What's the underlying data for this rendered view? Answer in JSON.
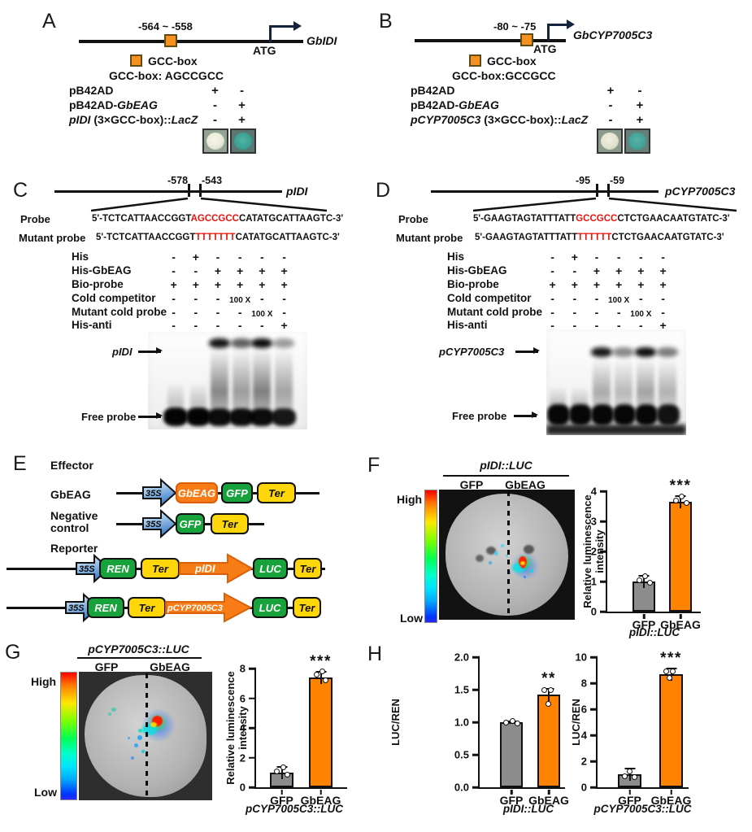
{
  "colors": {
    "accent_orange": "#F59120",
    "bar_gray": "#8C8C8C",
    "bar_orange": "#FF8200",
    "motif_red": "#E8150F",
    "box_green": "#17A23C",
    "box_yellow": "#FFD60A",
    "construct_orange": "#F97B16",
    "arrow_blue": "#3E7EC8",
    "colony_teal": "#3AA093"
  },
  "panelA": {
    "letter": "A",
    "region": "-564 ~ -558",
    "gene": "GbIDI",
    "atg": "ATG",
    "legend": "GCC-box",
    "motif_label": "GCC-box:",
    "motif_seq": "AGCCGCC",
    "row1": "pB42AD",
    "row2_pre": "pB42AD-",
    "row2_it": "GbEAG",
    "row3_it1": "pIDI",
    "row3_mid": " (3×GCC-box)::",
    "row3_it2": "LacZ",
    "vals1": [
      "+",
      "-"
    ],
    "vals2": [
      "-",
      "+"
    ],
    "vals3": [
      "-",
      "+"
    ]
  },
  "panelB": {
    "letter": "B",
    "region": "-80 ~ -75",
    "gene": "GbCYP7005C3",
    "atg": "ATG",
    "legend": "GCC-box",
    "motif_label": "GCC-box:",
    "motif_seq": "GCCGCC",
    "row1": "pB42AD",
    "row2_pre": "pB42AD-",
    "row2_it": "GbEAG",
    "row3_it1": "pCYP7005C3",
    "row3_mid": " (3×GCC-box)::",
    "row3_it2": "LacZ",
    "vals1": [
      "+",
      "-"
    ],
    "vals2": [
      "-",
      "+"
    ],
    "vals3": [
      "-",
      "+"
    ]
  },
  "panelC": {
    "letter": "C",
    "pos_left": "-578",
    "pos_right": "-543",
    "gene": "pIDI",
    "probe_label": "Probe",
    "mutant_label": "Mutant probe",
    "probe_p1": "5'-TCTCATTAACCGGT",
    "probe_red": "AGCCGCC",
    "probe_p2": "CATATGCATTAAGTC-3'",
    "mut_p1": "5'-TCTCATTAACCGGT",
    "mut_red": "TTTTTTT",
    "mut_p2": "CATATGCATTAAGTC-3'",
    "emsa_rows": [
      {
        "label": "His",
        "cells": [
          "-",
          "+",
          "-",
          "-",
          "-",
          "-"
        ]
      },
      {
        "label": "His-GbEAG",
        "cells": [
          "-",
          "-",
          "+",
          "+",
          "+",
          "+"
        ]
      },
      {
        "label": "Bio-probe",
        "cells": [
          "+",
          "+",
          "+",
          "+",
          "+",
          "+"
        ]
      },
      {
        "label": "Cold competitor",
        "cells": [
          "-",
          "-",
          "-",
          "100 X",
          "-",
          "-"
        ]
      },
      {
        "label": "Mutant cold probe",
        "cells": [
          "-",
          "-",
          "-",
          "-",
          "100 X",
          "-"
        ]
      },
      {
        "label": "His-anti",
        "cells": [
          "-",
          "-",
          "-",
          "-",
          "-",
          "+"
        ]
      }
    ],
    "band_label": "pIDI",
    "free_label": "Free probe"
  },
  "panelD": {
    "letter": "D",
    "pos_left": "-95",
    "pos_right": "-59",
    "gene": "pCYP7005C3",
    "probe_label": "Probe",
    "mutant_label": "Mutant probe",
    "probe_p1": "5'-GAAGTAGTATTTATT",
    "probe_red": "GCCGCC",
    "probe_p2": "CTCTGAACAATGTATC-3'",
    "mut_p1": "5'-GAAGTAGTATTTATT",
    "mut_red": "TTTTTT",
    "mut_p2": "CTCTGAACAATGTATC-3'",
    "emsa_rows": [
      {
        "label": "His",
        "cells": [
          "-",
          "+",
          "-",
          "-",
          "-",
          "-"
        ]
      },
      {
        "label": "His-GbEAG",
        "cells": [
          "-",
          "-",
          "+",
          "+",
          "+",
          "+"
        ]
      },
      {
        "label": "Bio-probe",
        "cells": [
          "+",
          "+",
          "+",
          "+",
          "+",
          "+"
        ]
      },
      {
        "label": "Cold competitor",
        "cells": [
          "-",
          "-",
          "-",
          "100 X",
          "-",
          "-"
        ]
      },
      {
        "label": "Mutant cold probe",
        "cells": [
          "-",
          "-",
          "-",
          "-",
          "100 X",
          "-"
        ]
      },
      {
        "label": "His-anti",
        "cells": [
          "-",
          "-",
          "-",
          "-",
          "-",
          "+"
        ]
      }
    ],
    "band_label": "pCYP7005C3",
    "free_label": "Free probe"
  },
  "panelE": {
    "letter": "E",
    "effector": "Effector",
    "reporter": "Reporter",
    "row1_label": "GbEAG",
    "row2_label": "Negative\ncontrol",
    "p35s": "35S",
    "gbeag": "GbEAG",
    "gfp": "GFP",
    "ter": "Ter",
    "ren": "REN",
    "luc": "LUC",
    "pidi": "pIDI",
    "pcyp": "pCYP7005C3"
  },
  "panelF": {
    "letter": "F",
    "header": "pIDI::LUC",
    "col1": "GFP",
    "col2": "GbEAG",
    "high": "High",
    "low": "Low"
  },
  "panelG": {
    "letter": "G",
    "header": "pCYP7005C3::LUC",
    "col1": "GFP",
    "col2": "GbEAG",
    "high": "High",
    "low": "Low"
  },
  "panelH": {
    "letter": "H"
  },
  "chart_data": [
    {
      "id": "F-luminescence",
      "type": "bar",
      "categories": [
        "GFP",
        "GbEAG"
      ],
      "values": [
        1.0,
        3.65
      ],
      "errors": [
        0.15,
        0.1
      ],
      "title": "",
      "xlabel": "",
      "ylabel": "Relative luminescence\nintensity",
      "caption": "pIDI::LUC",
      "ylim": [
        0,
        4
      ],
      "yticks": [
        "4",
        "3",
        "2",
        "1",
        "0"
      ],
      "significance": "***",
      "bar_colors": [
        "#8C8C8C",
        "#FF8200"
      ],
      "grid": false,
      "legend_position": "none"
    },
    {
      "id": "G-luminescence",
      "type": "bar",
      "categories": [
        "GFP",
        "GbEAG"
      ],
      "values": [
        1.0,
        7.4
      ],
      "errors": [
        0.35,
        0.3
      ],
      "title": "",
      "xlabel": "",
      "ylabel": "Relative luminescence\nintensity",
      "caption": "pCYP7005C3::LUC",
      "ylim": [
        0,
        8
      ],
      "yticks": [
        "8",
        "6",
        "4",
        "2",
        "0"
      ],
      "significance": "***",
      "bar_colors": [
        "#8C8C8C",
        "#FF8200"
      ],
      "grid": false,
      "legend_position": "none"
    },
    {
      "id": "H-lucren-pIDI",
      "type": "bar",
      "categories": [
        "GFP",
        "GbEAG"
      ],
      "values": [
        1.0,
        1.42
      ],
      "errors": [
        0.02,
        0.12
      ],
      "title": "",
      "xlabel": "",
      "ylabel": "LUC/REN",
      "caption": "pIDI::LUC",
      "ylim": [
        0,
        2
      ],
      "yticks": [
        "2.0",
        "1.5",
        "1.0",
        "0.5",
        "0.0"
      ],
      "significance": "**",
      "bar_colors": [
        "#8C8C8C",
        "#FF8200"
      ],
      "grid": false,
      "legend_position": "none"
    },
    {
      "id": "H-lucren-pCYP7005C3",
      "type": "bar",
      "categories": [
        "GFP",
        "GbEAG"
      ],
      "values": [
        1.0,
        8.7
      ],
      "errors": [
        0.25,
        0.2
      ],
      "title": "",
      "xlabel": "",
      "ylabel": "LUC/REN",
      "caption": "pCYP7005C3::LUC",
      "ylim": [
        0,
        10
      ],
      "yticks": [
        "10",
        "8",
        "6",
        "4",
        "2",
        "0"
      ],
      "significance": "***",
      "bar_colors": [
        "#8C8C8C",
        "#FF8200"
      ],
      "grid": false,
      "legend_position": "none"
    }
  ]
}
